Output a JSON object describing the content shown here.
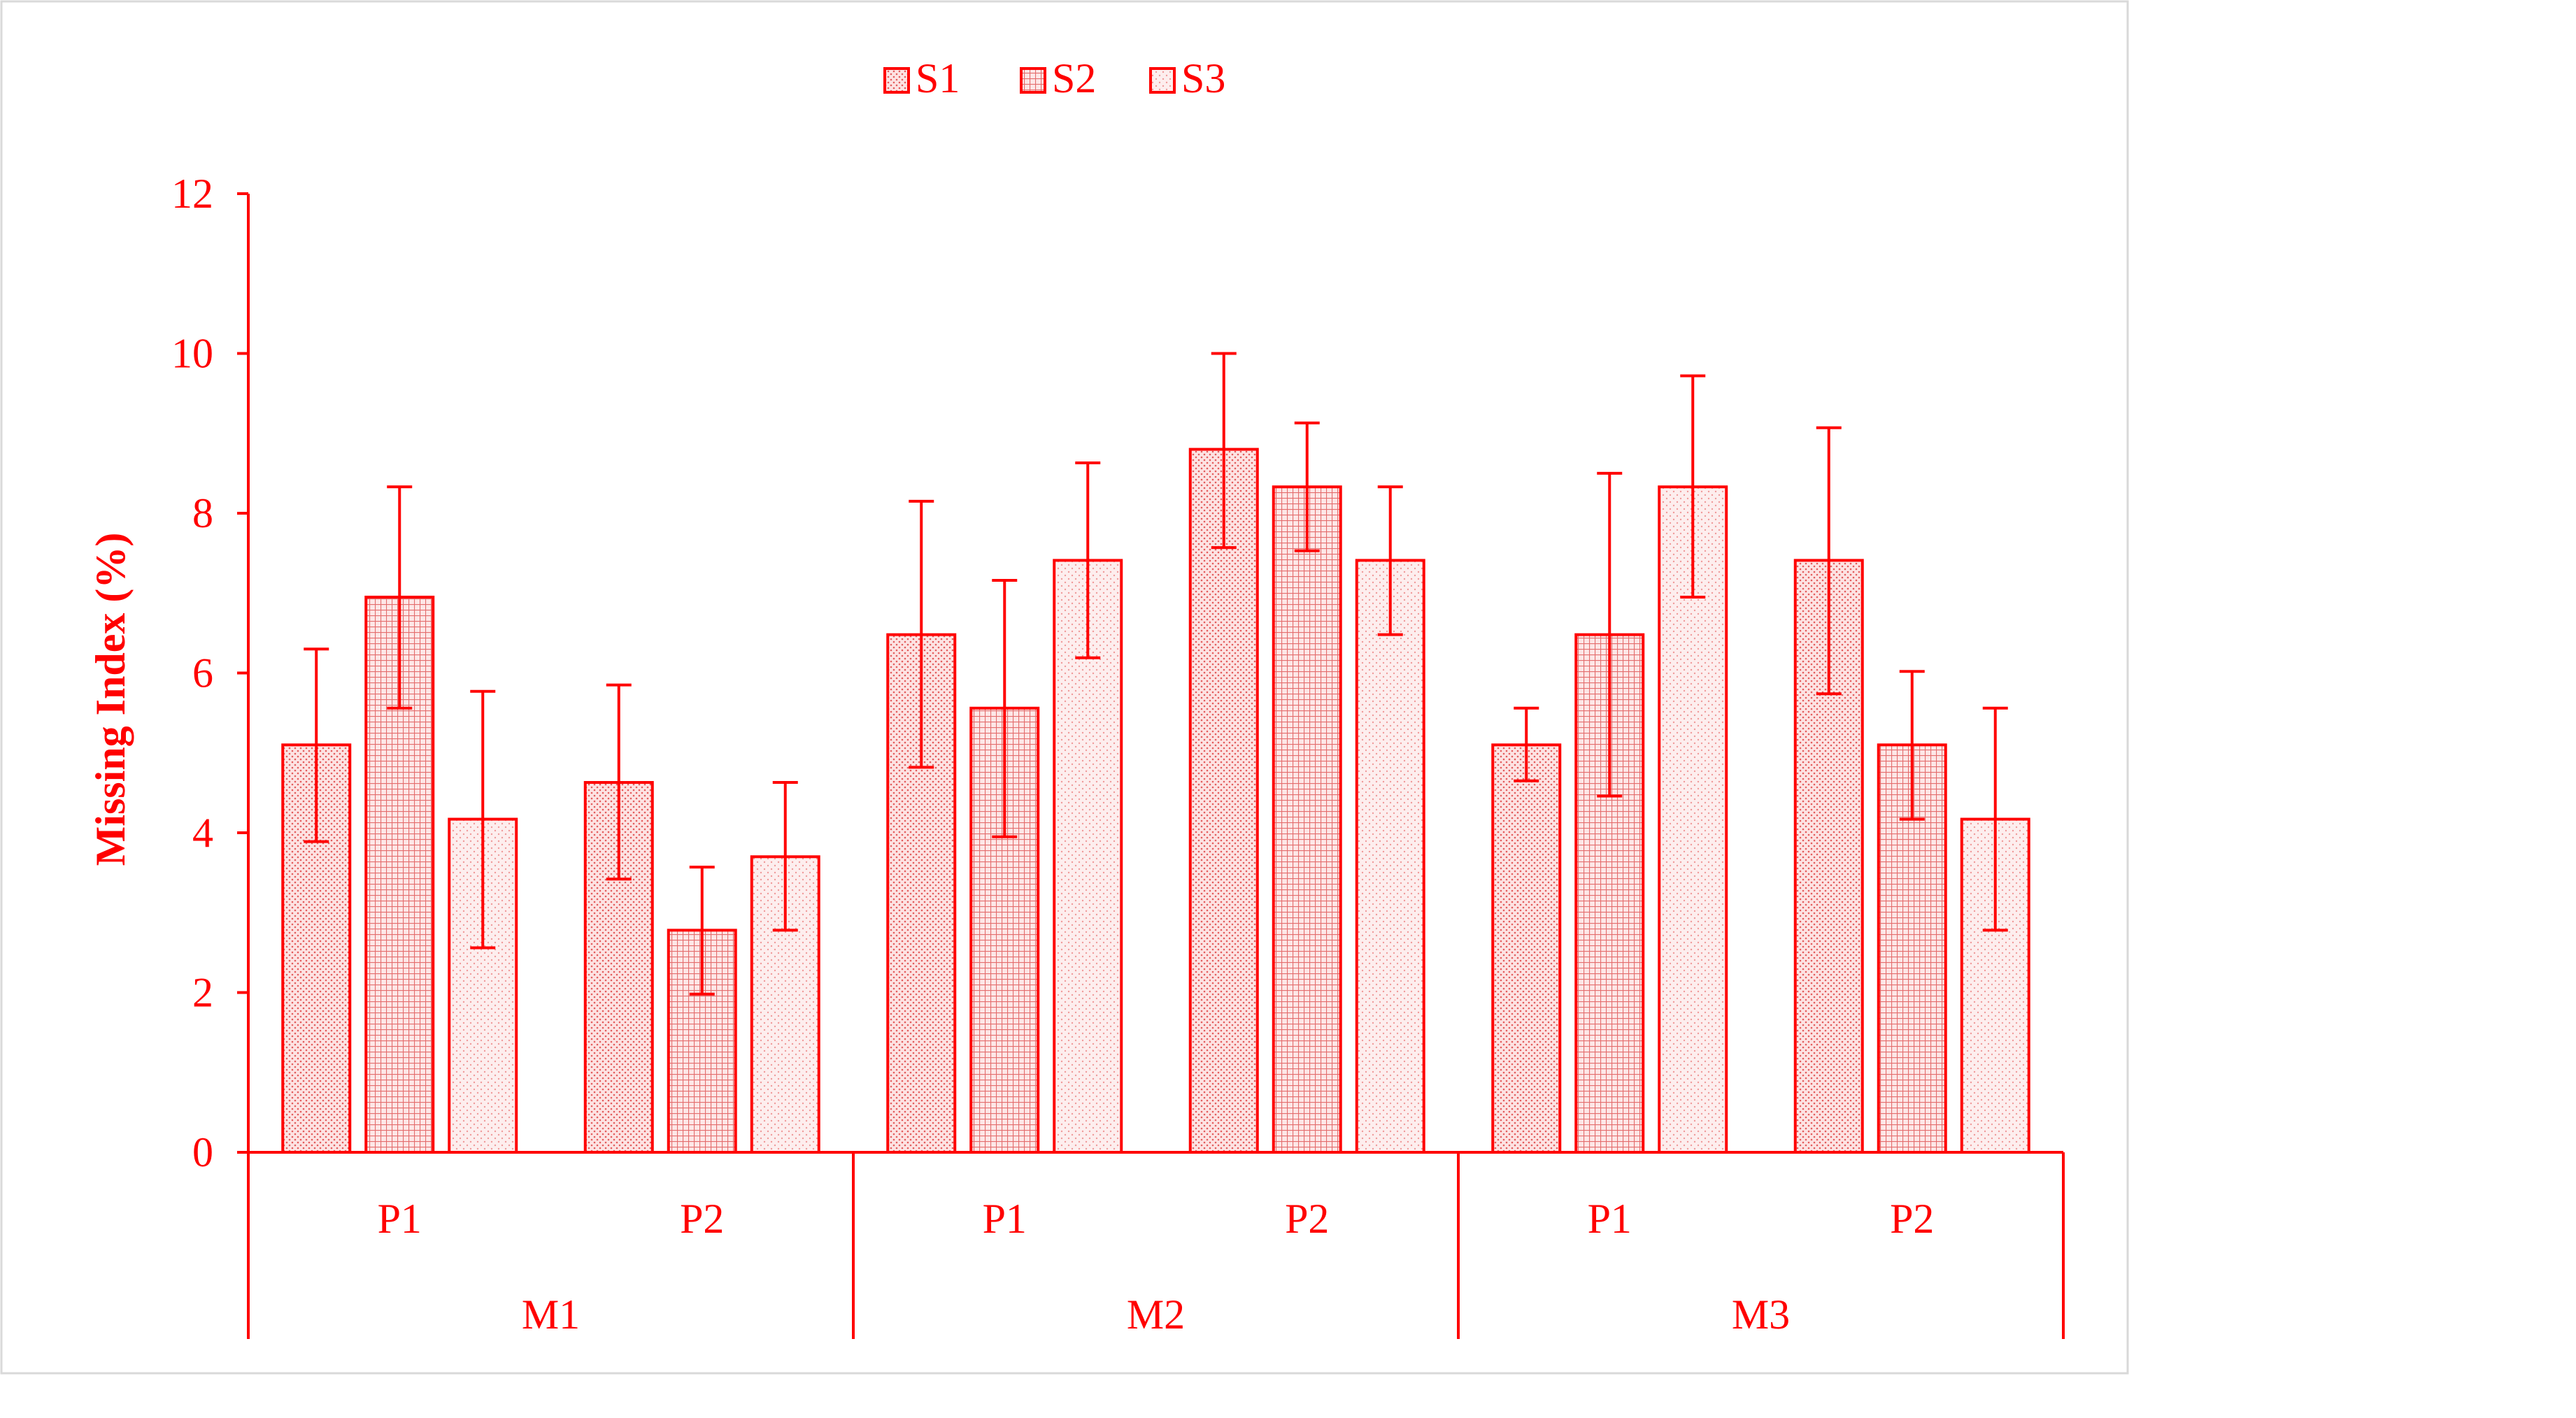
{
  "chart_data": {
    "type": "bar",
    "ylabel": "Missing Index (%)",
    "xlabel": "",
    "title": "",
    "ylim": [
      0,
      12
    ],
    "yticks": [
      0,
      2,
      4,
      6,
      8,
      10,
      12
    ],
    "ytick_labels": [
      "0",
      "2",
      "4",
      "6",
      "8",
      "10",
      "12"
    ],
    "legend_placement": "top-center",
    "grid": false,
    "color": "#ff0000",
    "groups": [
      {
        "label": "M1",
        "subgroups": [
          {
            "label": "P1"
          },
          {
            "label": "P2"
          }
        ]
      },
      {
        "label": "M2",
        "subgroups": [
          {
            "label": "P1"
          },
          {
            "label": "P2"
          }
        ]
      },
      {
        "label": "M3",
        "subgroups": [
          {
            "label": "P1"
          },
          {
            "label": "P2"
          }
        ]
      }
    ],
    "categories": [
      "M1-P1",
      "M1-P2",
      "M2-P1",
      "M2-P2",
      "M3-P1",
      "M3-P2"
    ],
    "series": [
      {
        "name": "S1",
        "values": [
          5.1,
          4.63,
          6.48,
          8.8,
          5.1,
          7.41
        ],
        "err_low": [
          3.89,
          3.42,
          4.82,
          7.57,
          4.65,
          5.74
        ],
        "err_high": [
          6.3,
          5.85,
          8.15,
          10.0,
          5.56,
          9.07
        ],
        "pattern": "dots-dense"
      },
      {
        "name": "S2",
        "values": [
          6.95,
          2.78,
          5.56,
          8.33,
          6.48,
          5.1
        ],
        "err_low": [
          5.56,
          1.98,
          3.95,
          7.53,
          4.46,
          4.17
        ],
        "err_high": [
          8.33,
          3.57,
          7.16,
          9.13,
          8.5,
          6.02
        ],
        "pattern": "grid"
      },
      {
        "name": "S3",
        "values": [
          4.17,
          3.7,
          7.41,
          7.41,
          8.33,
          4.17
        ],
        "err_low": [
          2.56,
          2.78,
          6.19,
          6.48,
          6.95,
          2.78
        ],
        "err_high": [
          5.77,
          4.63,
          8.63,
          8.33,
          9.72,
          5.56
        ],
        "pattern": "dots-light"
      }
    ]
  }
}
